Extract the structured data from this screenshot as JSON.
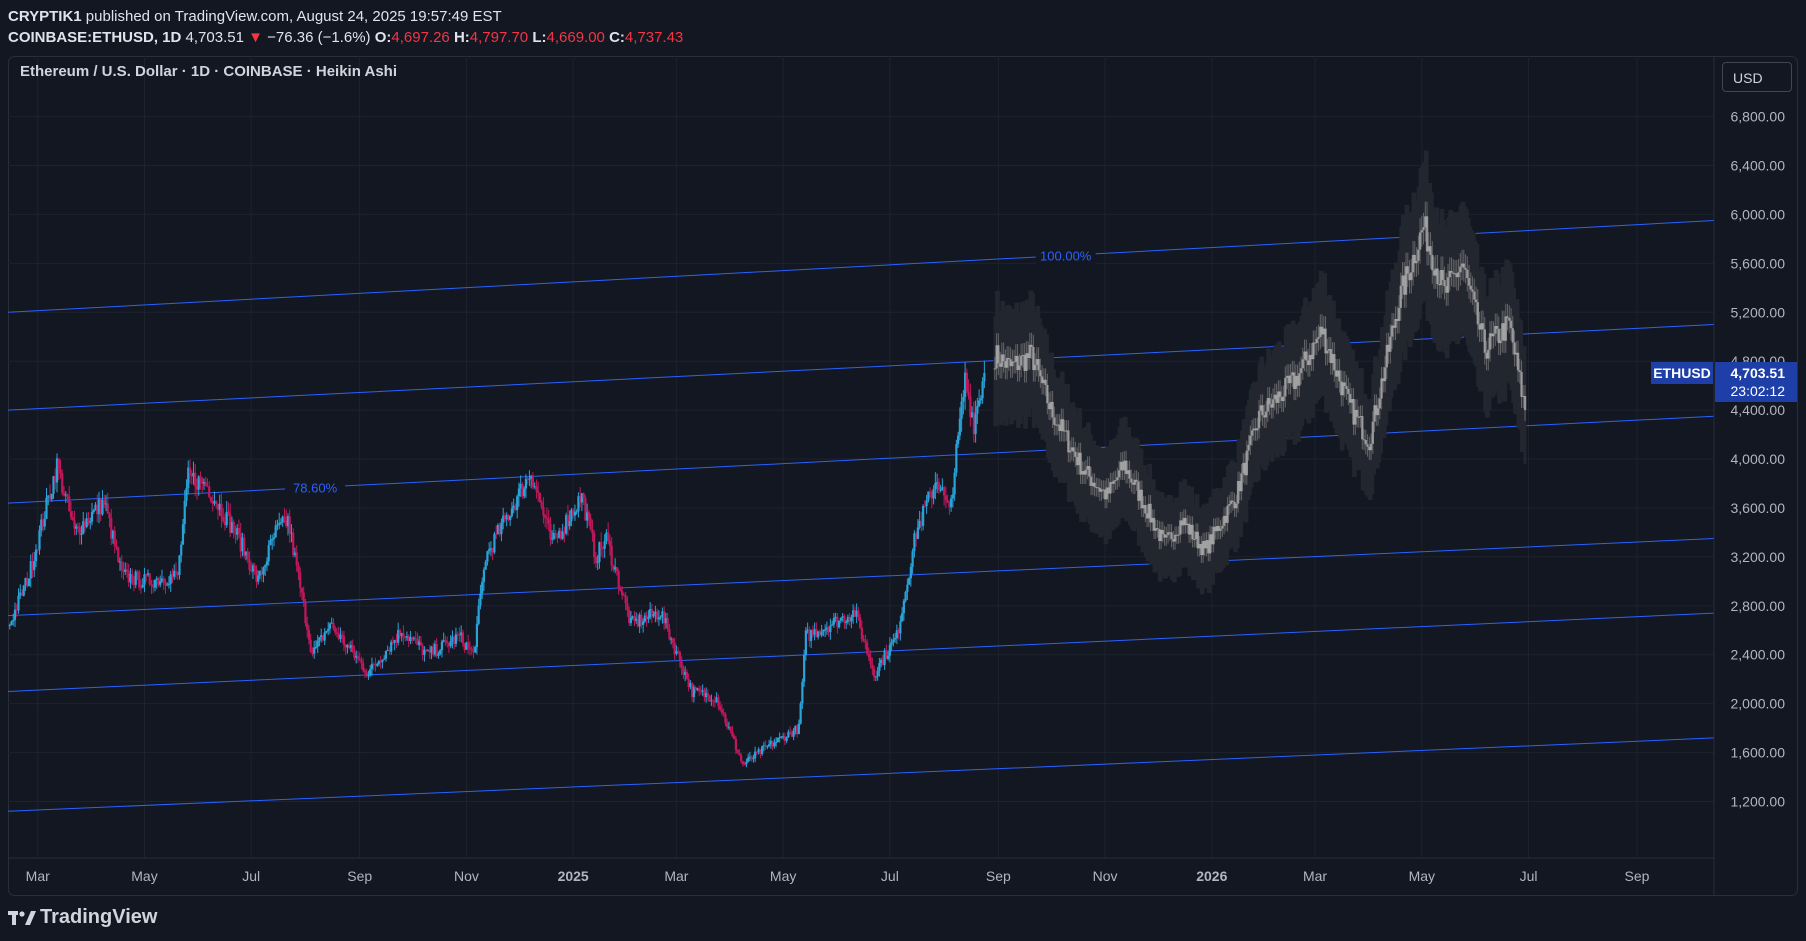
{
  "header": {
    "author": "CRYPTIK1",
    "published_text": "published on TradingView.com, August 24, 2025 19:57:49 EST",
    "symbol": "COINBASE:ETHUSD, 1D",
    "last": "4,703.51",
    "change_arrow": "▼",
    "change": "−76.36 (−1.6%)",
    "o_label": "O:",
    "o_value": "4,697.26",
    "h_label": "H:",
    "h_value": "4,797.70",
    "l_label": "L:",
    "l_value": "4,669.00",
    "c_label": "C:",
    "c_value": "4,737.43"
  },
  "currency_button": "USD",
  "price_tag": {
    "symbol": "ETHUSD",
    "price": "4,703.51",
    "countdown": "23:02:12"
  },
  "footer": {
    "brand": "TradingView"
  },
  "colors": {
    "background": "#131722",
    "grid": "#1e222d",
    "up": "#2aa3d9",
    "down": "#c2185b",
    "projection": "#9a9a9a",
    "projection_shadow": "#2a2a2a",
    "channel": "#2962ff",
    "tag": "#1e3fa8"
  },
  "chart_data": {
    "type": "candlestick",
    "title": "Ethereum / U.S. Dollar · 1D · COINBASE · Heikin Ashi",
    "x_ticks": [
      "Mar",
      "May",
      "Jul",
      "Sep",
      "Nov",
      "2025",
      "Mar",
      "May",
      "Jul",
      "Sep",
      "Nov",
      "2026",
      "Mar",
      "May",
      "Jul",
      "Sep"
    ],
    "x_tick_dates": [
      "2024-03-01",
      "2024-05-01",
      "2024-07-01",
      "2024-09-01",
      "2024-11-01",
      "2025-01-01",
      "2025-03-01",
      "2025-05-01",
      "2025-07-01",
      "2025-09-01",
      "2025-11-01",
      "2026-01-01",
      "2026-03-01",
      "2026-05-01",
      "2026-07-01",
      "2026-09-01"
    ],
    "x_range": [
      "2024-02-13",
      "2026-10-15"
    ],
    "y_ticks": [
      "1,200.00",
      "1,600.00",
      "2,000.00",
      "2,400.00",
      "2,800.00",
      "3,200.00",
      "3,600.00",
      "4,000.00",
      "4,400.00",
      "4,800.00",
      "5,200.00",
      "5,600.00",
      "6,000.00",
      "6,400.00",
      "6,800.00"
    ],
    "y_tick_values": [
      1200,
      1600,
      2000,
      2400,
      2800,
      3200,
      3600,
      4000,
      4400,
      4800,
      5200,
      5600,
      6000,
      6400,
      6800
    ],
    "ylim": [
      820,
      7050
    ],
    "series": [
      {
        "name": "ETHUSD",
        "role": "actual",
        "points": [
          [
            "2024-02-14",
            2650
          ],
          [
            "2024-02-25",
            3050
          ],
          [
            "2024-03-12",
            3950
          ],
          [
            "2024-03-22",
            3400
          ],
          [
            "2024-04-08",
            3650
          ],
          [
            "2024-04-18",
            3050
          ],
          [
            "2024-05-01",
            3000
          ],
          [
            "2024-05-20",
            3050
          ],
          [
            "2024-05-26",
            3850
          ],
          [
            "2024-06-05",
            3800
          ],
          [
            "2024-06-24",
            3350
          ],
          [
            "2024-07-05",
            3000
          ],
          [
            "2024-07-15",
            3400
          ],
          [
            "2024-07-22",
            3500
          ],
          [
            "2024-08-05",
            2400
          ],
          [
            "2024-08-15",
            2650
          ],
          [
            "2024-09-06",
            2250
          ],
          [
            "2024-09-25",
            2600
          ],
          [
            "2024-10-10",
            2400
          ],
          [
            "2024-10-28",
            2550
          ],
          [
            "2024-11-05",
            2400
          ],
          [
            "2024-11-12",
            3200
          ],
          [
            "2024-12-08",
            3900
          ],
          [
            "2024-12-20",
            3300
          ],
          [
            "2025-01-06",
            3700
          ],
          [
            "2025-01-14",
            3200
          ],
          [
            "2025-01-20",
            3350
          ],
          [
            "2025-02-03",
            2650
          ],
          [
            "2025-02-20",
            2750
          ],
          [
            "2025-03-10",
            2100
          ],
          [
            "2025-03-24",
            2050
          ],
          [
            "2025-04-08",
            1500
          ],
          [
            "2025-04-22",
            1650
          ],
          [
            "2025-05-10",
            1800
          ],
          [
            "2025-05-14",
            2550
          ],
          [
            "2025-06-11",
            2750
          ],
          [
            "2025-06-22",
            2250
          ],
          [
            "2025-07-05",
            2550
          ],
          [
            "2025-07-16",
            3400
          ],
          [
            "2025-07-28",
            3850
          ],
          [
            "2025-08-04",
            3550
          ],
          [
            "2025-08-13",
            4650
          ],
          [
            "2025-08-18",
            4300
          ],
          [
            "2025-08-24",
            4703.51
          ]
        ]
      },
      {
        "name": "Projection",
        "role": "projection",
        "points": [
          [
            "2025-08-30",
            4850
          ],
          [
            "2025-09-08",
            4750
          ],
          [
            "2025-09-20",
            4850
          ],
          [
            "2025-10-01",
            4400
          ],
          [
            "2025-10-20",
            3900
          ],
          [
            "2025-11-02",
            3700
          ],
          [
            "2025-11-12",
            3950
          ],
          [
            "2025-12-05",
            3300
          ],
          [
            "2025-12-15",
            3500
          ],
          [
            "2025-12-28",
            3250
          ],
          [
            "2026-01-15",
            3700
          ],
          [
            "2026-01-28",
            4350
          ],
          [
            "2026-02-18",
            4650
          ],
          [
            "2026-03-05",
            5050
          ],
          [
            "2026-03-20",
            4450
          ],
          [
            "2026-04-01",
            4150
          ],
          [
            "2026-04-18",
            5300
          ],
          [
            "2026-05-02",
            5900
          ],
          [
            "2026-05-14",
            5350
          ],
          [
            "2026-05-24",
            5600
          ],
          [
            "2026-06-06",
            4900
          ],
          [
            "2026-06-20",
            5100
          ],
          [
            "2026-06-29",
            4400
          ]
        ]
      }
    ],
    "channel_lines": [
      {
        "label": "100.00%",
        "from": [
          "2024-02-13",
          5200
        ],
        "to": [
          "2026-10-15",
          5950
        ]
      },
      {
        "label": "",
        "from": [
          "2024-02-13",
          4400
        ],
        "to": [
          "2026-10-15",
          5100
        ]
      },
      {
        "label": "78.60%",
        "from": [
          "2024-02-13",
          3640
        ],
        "to": [
          "2026-10-15",
          4350
        ]
      },
      {
        "label": "",
        "from": [
          "2024-02-13",
          2720
        ],
        "to": [
          "2026-10-15",
          3350
        ]
      },
      {
        "label": "",
        "from": [
          "2024-02-13",
          2100
        ],
        "to": [
          "2026-10-15",
          2740
        ]
      },
      {
        "label": "",
        "from": [
          "2024-02-13",
          1120
        ],
        "to": [
          "2026-10-15",
          1720
        ]
      }
    ],
    "grid": true,
    "legend": "none"
  }
}
